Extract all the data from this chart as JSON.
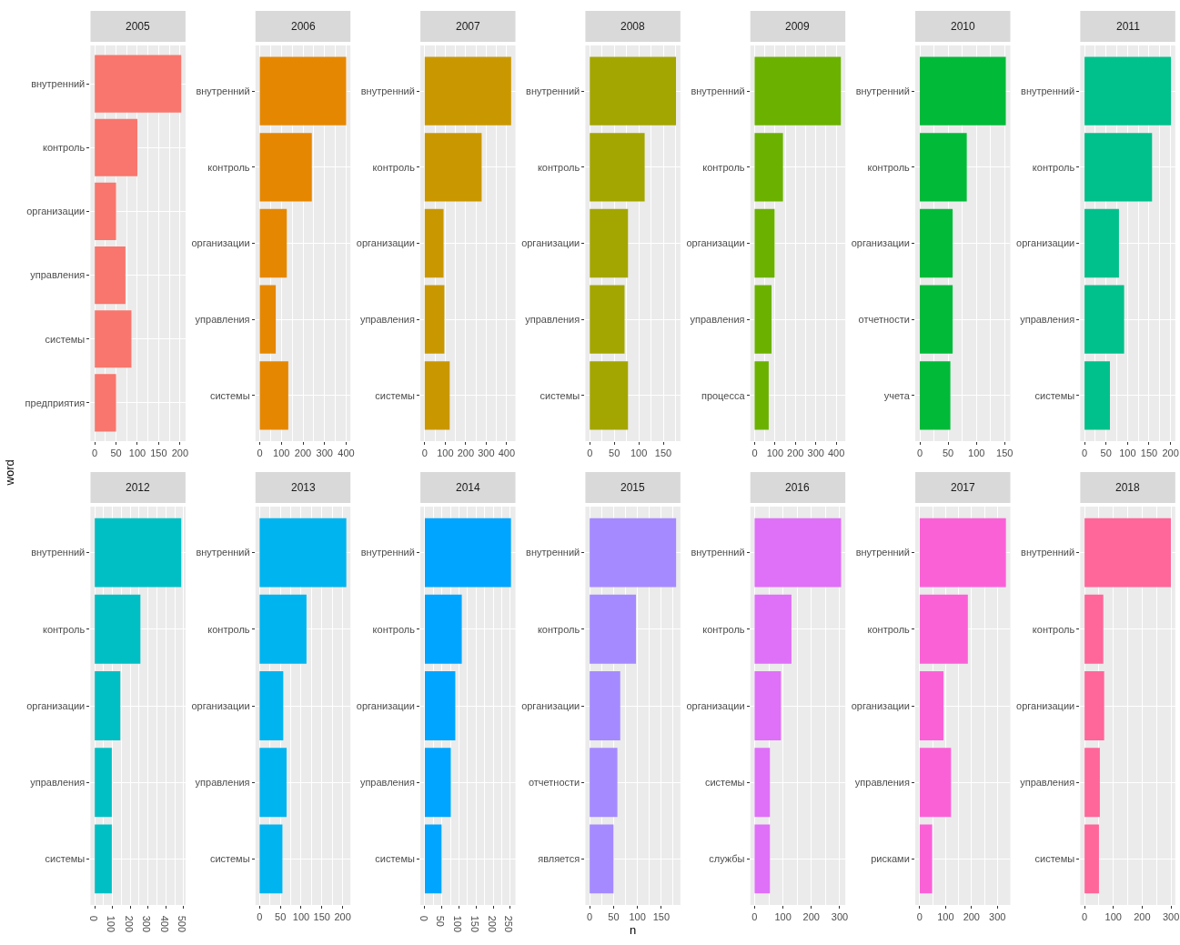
{
  "chart_data": [
    {
      "type": "bar",
      "orientation": "horizontal",
      "title": "2005",
      "categories": [
        "внутренний",
        "контроль",
        "организации",
        "управления",
        "системы",
        "предприятия"
      ],
      "values": [
        203,
        100,
        50,
        72,
        86,
        50
      ],
      "color": "#f8766d",
      "xlim": [
        -10,
        213
      ],
      "xticks": [
        0,
        50,
        100,
        150,
        200
      ],
      "grid": true
    },
    {
      "type": "bar",
      "orientation": "horizontal",
      "title": "2006",
      "categories": [
        "внутренний",
        "контроль",
        "организации",
        "управления",
        "системы"
      ],
      "values": [
        400,
        241,
        125,
        74,
        132
      ],
      "color": "#e58700",
      "xlim": [
        -20,
        420
      ],
      "xticks": [
        0,
        100,
        200,
        300,
        400
      ],
      "grid": true
    },
    {
      "type": "bar",
      "orientation": "horizontal",
      "title": "2007",
      "categories": [
        "внутренний",
        "контроль",
        "организации",
        "управления",
        "системы"
      ],
      "values": [
        422,
        278,
        92,
        96,
        122
      ],
      "color": "#c99800",
      "xlim": [
        -21,
        443
      ],
      "xticks": [
        0,
        100,
        200,
        300,
        400
      ],
      "grid": true
    },
    {
      "type": "bar",
      "orientation": "horizontal",
      "title": "2008",
      "categories": [
        "внутренний",
        "контроль",
        "организации",
        "управления",
        "системы"
      ],
      "values": [
        176,
        112,
        78,
        71,
        78
      ],
      "color": "#a3a500",
      "xlim": [
        -9,
        185
      ],
      "xticks": [
        0,
        50,
        100,
        150
      ],
      "grid": true
    },
    {
      "type": "bar",
      "orientation": "horizontal",
      "title": "2009",
      "categories": [
        "внутренний",
        "контроль",
        "организации",
        "управления",
        "процесса"
      ],
      "values": [
        423,
        139,
        98,
        83,
        69
      ],
      "color": "#6bb100",
      "xlim": [
        -21,
        445
      ],
      "xticks": [
        0,
        100,
        200,
        300,
        400
      ],
      "grid": true
    },
    {
      "type": "bar",
      "orientation": "horizontal",
      "title": "2010",
      "categories": [
        "внутренний",
        "контроль",
        "организации",
        "отчетности",
        "учета"
      ],
      "values": [
        152,
        83,
        58,
        58,
        54
      ],
      "color": "#00ba38",
      "xlim": [
        -8,
        160
      ],
      "xticks": [
        0,
        50,
        100,
        150
      ],
      "grid": true
    },
    {
      "type": "bar",
      "orientation": "horizontal",
      "title": "2011",
      "categories": [
        "внутренний",
        "контроль",
        "организации",
        "управления",
        "системы"
      ],
      "values": [
        201,
        157,
        80,
        92,
        59
      ],
      "color": "#00c08b",
      "xlim": [
        -10,
        211
      ],
      "xticks": [
        0,
        50,
        100,
        150,
        200
      ],
      "grid": true
    },
    {
      "type": "bar",
      "orientation": "horizontal",
      "title": "2012",
      "ylabel": "word",
      "categories": [
        "внутренний",
        "контроль",
        "организации",
        "управления",
        "системы"
      ],
      "values": [
        487,
        257,
        144,
        96,
        96
      ],
      "color": "#00bfc4",
      "xlim": [
        -24,
        511
      ],
      "xticks": [
        0,
        100,
        200,
        300,
        400,
        500
      ],
      "grid": true
    },
    {
      "type": "bar",
      "orientation": "horizontal",
      "title": "2013",
      "categories": [
        "внутренний",
        "контроль",
        "организации",
        "управления",
        "системы"
      ],
      "values": [
        209,
        113,
        57,
        65,
        55
      ],
      "color": "#00b4ef",
      "xlim": [
        -10,
        219
      ],
      "xticks": [
        0,
        50,
        100,
        150,
        200
      ],
      "grid": true
    },
    {
      "type": "bar",
      "orientation": "horizontal",
      "title": "2014",
      "categories": [
        "внутренний",
        "контроль",
        "организации",
        "управления",
        "системы"
      ],
      "values": [
        252,
        108,
        89,
        76,
        49
      ],
      "color": "#00a5ff",
      "xlim": [
        -13,
        265
      ],
      "xticks": [
        0,
        50,
        100,
        150,
        200,
        250
      ],
      "grid": true
    },
    {
      "type": "bar",
      "orientation": "horizontal",
      "title": "2015",
      "xlabel": "n",
      "categories": [
        "внутренний",
        "контроль",
        "организации",
        "отчетности",
        "является"
      ],
      "values": [
        181,
        97,
        64,
        58,
        50
      ],
      "color": "#a58aff",
      "xlim": [
        -9,
        190
      ],
      "xticks": [
        0,
        50,
        100,
        150
      ],
      "grid": true
    },
    {
      "type": "bar",
      "orientation": "horizontal",
      "title": "2016",
      "categories": [
        "внутренний",
        "контроль",
        "организации",
        "системы",
        "службы"
      ],
      "values": [
        305,
        130,
        93,
        54,
        54
      ],
      "color": "#df70f8",
      "xlim": [
        -15,
        320
      ],
      "xticks": [
        0,
        100,
        200,
        300
      ],
      "grid": true
    },
    {
      "type": "bar",
      "orientation": "horizontal",
      "title": "2017",
      "categories": [
        "внутренний",
        "контроль",
        "организации",
        "управления",
        "рисками"
      ],
      "values": [
        333,
        186,
        92,
        121,
        48
      ],
      "color": "#fb61d7",
      "xlim": [
        -17,
        350
      ],
      "xticks": [
        0,
        100,
        200,
        300
      ],
      "grid": true
    },
    {
      "type": "bar",
      "orientation": "horizontal",
      "title": "2018",
      "categories": [
        "внутренний",
        "контроль",
        "организации",
        "управления",
        "системы"
      ],
      "values": [
        300,
        65,
        68,
        53,
        50
      ],
      "color": "#ff6699",
      "xlim": [
        -15,
        315
      ],
      "xticks": [
        0,
        100,
        200,
        300
      ],
      "grid": true
    }
  ]
}
